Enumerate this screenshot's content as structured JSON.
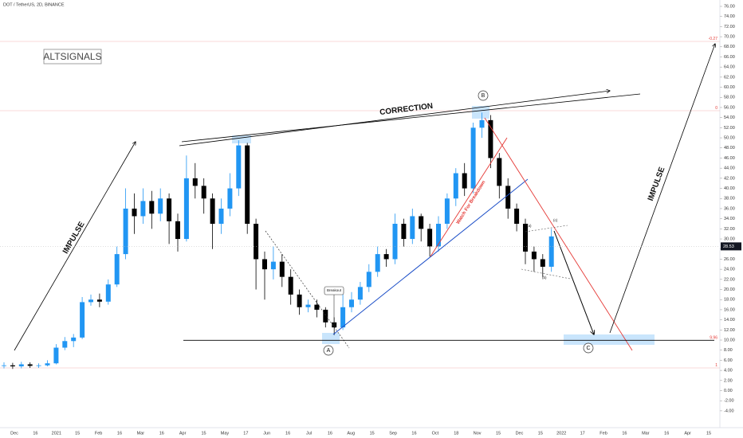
{
  "chart_data": {
    "type": "candlestick",
    "title": "DOT / TetherUS, 2D, BINANCE",
    "watermark": "ALTSIGNALS",
    "up_color": "#2196f3",
    "down_color": "#000000",
    "ylim": [
      -6,
      76
    ],
    "yticks": [
      {
        "value": 76,
        "label": "76.00"
      },
      {
        "value": 74,
        "label": "74.00"
      },
      {
        "value": 72,
        "label": "72.00"
      },
      {
        "value": 70,
        "label": "70.00"
      },
      {
        "value": 68,
        "label": "68.00"
      },
      {
        "value": 66,
        "label": "66.00"
      },
      {
        "value": 64,
        "label": "64.00"
      },
      {
        "value": 62,
        "label": "62.00"
      },
      {
        "value": 60,
        "label": "60.00"
      },
      {
        "value": 58,
        "label": "58.00"
      },
      {
        "value": 56,
        "label": "56.00"
      },
      {
        "value": 54,
        "label": "54.00"
      },
      {
        "value": 52,
        "label": "52.00"
      },
      {
        "value": 50,
        "label": "50.00"
      },
      {
        "value": 48,
        "label": "48.00"
      },
      {
        "value": 46,
        "label": "46.00"
      },
      {
        "value": 44,
        "label": "44.00"
      },
      {
        "value": 42,
        "label": "42.00"
      },
      {
        "value": 40,
        "label": "40.00"
      },
      {
        "value": 38,
        "label": "38.00"
      },
      {
        "value": 36,
        "label": "36.00"
      },
      {
        "value": 34,
        "label": "34.00"
      },
      {
        "value": 32,
        "label": "32.00"
      },
      {
        "value": 30,
        "label": "30.00"
      },
      {
        "value": 28,
        "label": "28.00"
      },
      {
        "value": 26,
        "label": "26.00"
      },
      {
        "value": 24,
        "label": "24.00"
      },
      {
        "value": 22,
        "label": "22.00"
      },
      {
        "value": 20,
        "label": "20.00"
      },
      {
        "value": 18,
        "label": "18.00"
      },
      {
        "value": 16,
        "label": "16.00"
      },
      {
        "value": 14,
        "label": "14.00"
      },
      {
        "value": 12,
        "label": "12.00"
      },
      {
        "value": 10,
        "label": "10.00"
      },
      {
        "value": 8,
        "label": "8.00"
      },
      {
        "value": 6,
        "label": "6.00"
      },
      {
        "value": 4,
        "label": "4.00"
      },
      {
        "value": 2,
        "label": "2.00"
      },
      {
        "value": 0,
        "label": "0.00"
      },
      {
        "value": -2,
        "label": "-2.00"
      },
      {
        "value": -4,
        "label": "-4.00"
      }
    ],
    "time_labels": [
      "Dec",
      "16",
      "2021",
      "15",
      "Feb",
      "16",
      "Mar",
      "16",
      "Apr",
      "15",
      "May",
      "17",
      "Jun",
      "16",
      "Jul",
      "16",
      "Aug",
      "15",
      "Sep",
      "16",
      "Oct",
      "18",
      "Nov",
      "15",
      "Dec",
      "15",
      "2022",
      "17",
      "Feb",
      "16",
      "Mar",
      "16",
      "Apr",
      "15"
    ],
    "open": [
      4.9,
      5.0,
      4.8,
      5.2,
      4.9,
      5.0,
      5.4,
      8.5,
      9.8,
      10.5,
      17.5,
      18.0,
      17.6,
      21.0,
      27.0,
      36.0,
      34.5,
      37.5,
      35.0,
      38.0,
      33.5,
      30.0,
      42.0,
      40.5,
      38.0,
      33.0,
      36.0,
      40.0,
      48.5,
      33.0,
      26.0,
      24.0,
      25.5,
      22.5,
      19.0,
      16.5,
      17.0,
      16.0,
      13.5,
      12.5,
      16.5,
      18.0,
      20.5,
      23.5,
      27.0,
      26.0,
      33.0,
      30.0,
      34.5,
      32.0,
      28.5,
      33.0,
      38.0,
      43.0,
      40.0,
      52.0,
      53.5,
      46.0,
      40.5,
      36.0,
      33.0,
      27.5,
      26.0,
      24.5
    ],
    "high": [
      5.6,
      5.5,
      5.7,
      5.6,
      5.4,
      6.0,
      9.2,
      10.6,
      11.2,
      18.5,
      19.0,
      19.2,
      22.0,
      28.5,
      40.0,
      39.0,
      40.0,
      39.5,
      40.0,
      39.0,
      35.0,
      46.5,
      45.0,
      42.0,
      39.0,
      38.0,
      43.0,
      49.5,
      49.0,
      34.0,
      27.5,
      28.5,
      27.0,
      24.0,
      20.0,
      18.0,
      18.0,
      16.5,
      14.5,
      19.5,
      19.5,
      21.5,
      25.0,
      28.5,
      28.0,
      35.0,
      34.0,
      36.0,
      35.0,
      33.0,
      34.5,
      39.0,
      44.0,
      45.0,
      53.0,
      55.0,
      54.5,
      47.0,
      42.0,
      37.0,
      34.0,
      28.5,
      27.0,
      32.0
    ],
    "low": [
      4.4,
      4.3,
      4.4,
      4.5,
      4.5,
      4.8,
      5.2,
      8.0,
      8.6,
      10.2,
      16.8,
      16.5,
      17.0,
      20.5,
      26.0,
      31.0,
      33.0,
      32.0,
      33.5,
      29.0,
      27.5,
      29.5,
      38.0,
      35.0,
      28.0,
      31.0,
      34.5,
      38.5,
      31.0,
      20.0,
      18.0,
      22.0,
      20.5,
      17.0,
      15.0,
      15.5,
      14.5,
      12.5,
      11.0,
      12.0,
      15.5,
      17.0,
      19.5,
      22.5,
      24.5,
      25.0,
      28.5,
      29.0,
      29.5,
      26.5,
      27.5,
      32.0,
      36.5,
      38.5,
      39.0,
      50.0,
      44.0,
      38.0,
      34.0,
      31.5,
      25.0,
      23.5,
      22.5,
      23.5
    ],
    "close": [
      5.0,
      4.8,
      5.2,
      4.9,
      5.0,
      5.4,
      8.5,
      9.8,
      10.5,
      17.5,
      18.0,
      17.6,
      21.0,
      27.0,
      36.0,
      34.5,
      37.5,
      35.0,
      38.0,
      33.5,
      30.0,
      42.0,
      40.5,
      38.0,
      33.0,
      36.0,
      40.0,
      48.5,
      33.0,
      26.0,
      24.0,
      25.5,
      22.5,
      19.0,
      16.5,
      17.0,
      16.0,
      13.5,
      12.5,
      16.5,
      18.0,
      20.5,
      23.5,
      27.0,
      26.0,
      33.0,
      30.0,
      34.5,
      32.0,
      28.5,
      33.0,
      38.0,
      43.0,
      40.0,
      52.0,
      53.5,
      46.0,
      40.5,
      36.0,
      33.0,
      27.5,
      26.0,
      24.5,
      30.5
    ],
    "last_price": 28.53,
    "level": 9.96,
    "fib_labels": [
      "-0.27",
      "0",
      "1"
    ],
    "annotations": {
      "correction": "CORRECTION",
      "impulse_left": "IMPULSE",
      "impulse_right": "IMPULSE",
      "wave_a": "A",
      "wave_b": "B",
      "wave_c": "C",
      "breakout": "Breakout",
      "watch": "Watch For Breakdown",
      "sub_a": "(a)",
      "sub_b": "(b)",
      "sub_c": "(c)"
    }
  }
}
